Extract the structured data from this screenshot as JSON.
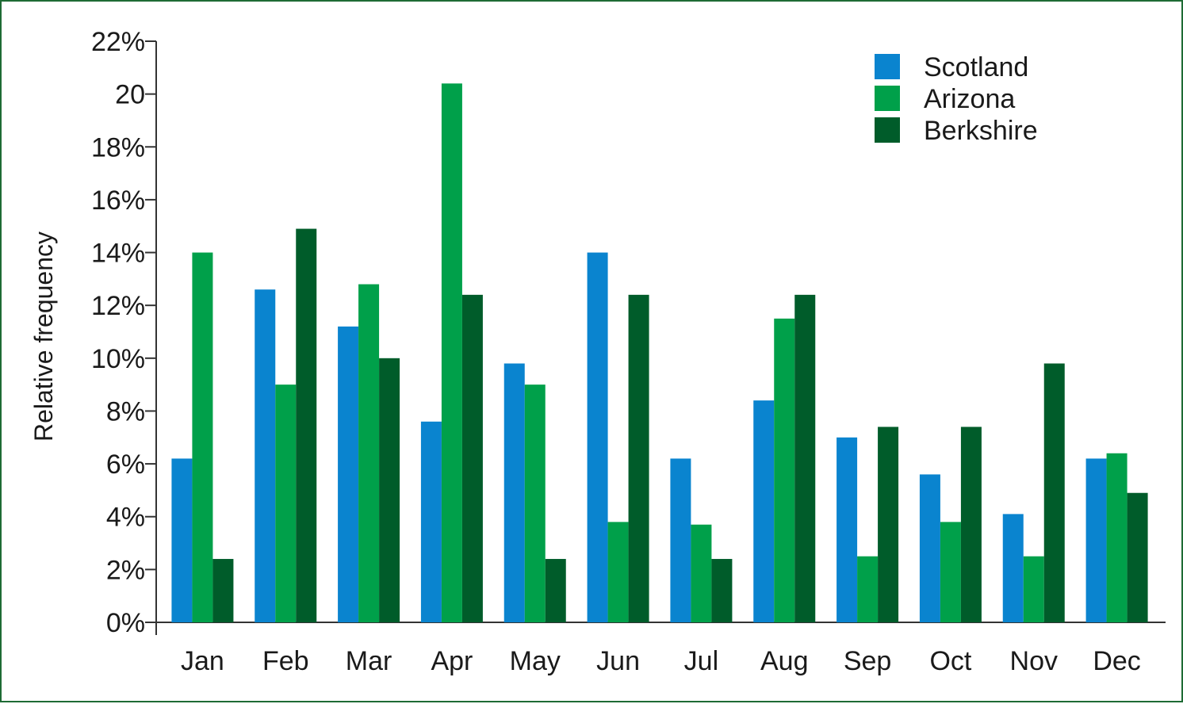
{
  "chart_data": {
    "type": "bar",
    "title": "",
    "xlabel": "",
    "ylabel": "Relative frequency",
    "ylim": [
      0,
      22
    ],
    "y_ticks": [
      {
        "value": 0,
        "label": "0%"
      },
      {
        "value": 2,
        "label": "2%"
      },
      {
        "value": 4,
        "label": "4%"
      },
      {
        "value": 6,
        "label": "6%"
      },
      {
        "value": 8,
        "label": "8%"
      },
      {
        "value": 10,
        "label": "10%"
      },
      {
        "value": 12,
        "label": "12%"
      },
      {
        "value": 14,
        "label": "14%"
      },
      {
        "value": 16,
        "label": "16%"
      },
      {
        "value": 18,
        "label": "18%"
      },
      {
        "value": 20,
        "label": "20"
      },
      {
        "value": 22,
        "label": "22%"
      }
    ],
    "categories": [
      "Jan",
      "Feb",
      "Mar",
      "Apr",
      "May",
      "Jun",
      "Jul",
      "Aug",
      "Sep",
      "Oct",
      "Nov",
      "Dec"
    ],
    "series": [
      {
        "name": "Scotland",
        "color": "#0a84cf",
        "values": [
          6.2,
          12.6,
          11.2,
          7.6,
          9.8,
          14.0,
          6.2,
          8.4,
          7.0,
          5.6,
          4.1,
          6.2
        ]
      },
      {
        "name": "Arizona",
        "color": "#00a04a",
        "values": [
          14.0,
          9.0,
          12.8,
          20.4,
          9.0,
          3.8,
          3.7,
          11.5,
          2.5,
          3.8,
          2.5,
          6.4
        ]
      },
      {
        "name": "Berkshire",
        "color": "#005c2a",
        "values": [
          2.4,
          14.9,
          10.0,
          12.4,
          2.4,
          12.4,
          2.4,
          12.4,
          7.4,
          7.4,
          9.8,
          4.9
        ]
      }
    ],
    "legend_position": "top-right",
    "grid": false
  }
}
